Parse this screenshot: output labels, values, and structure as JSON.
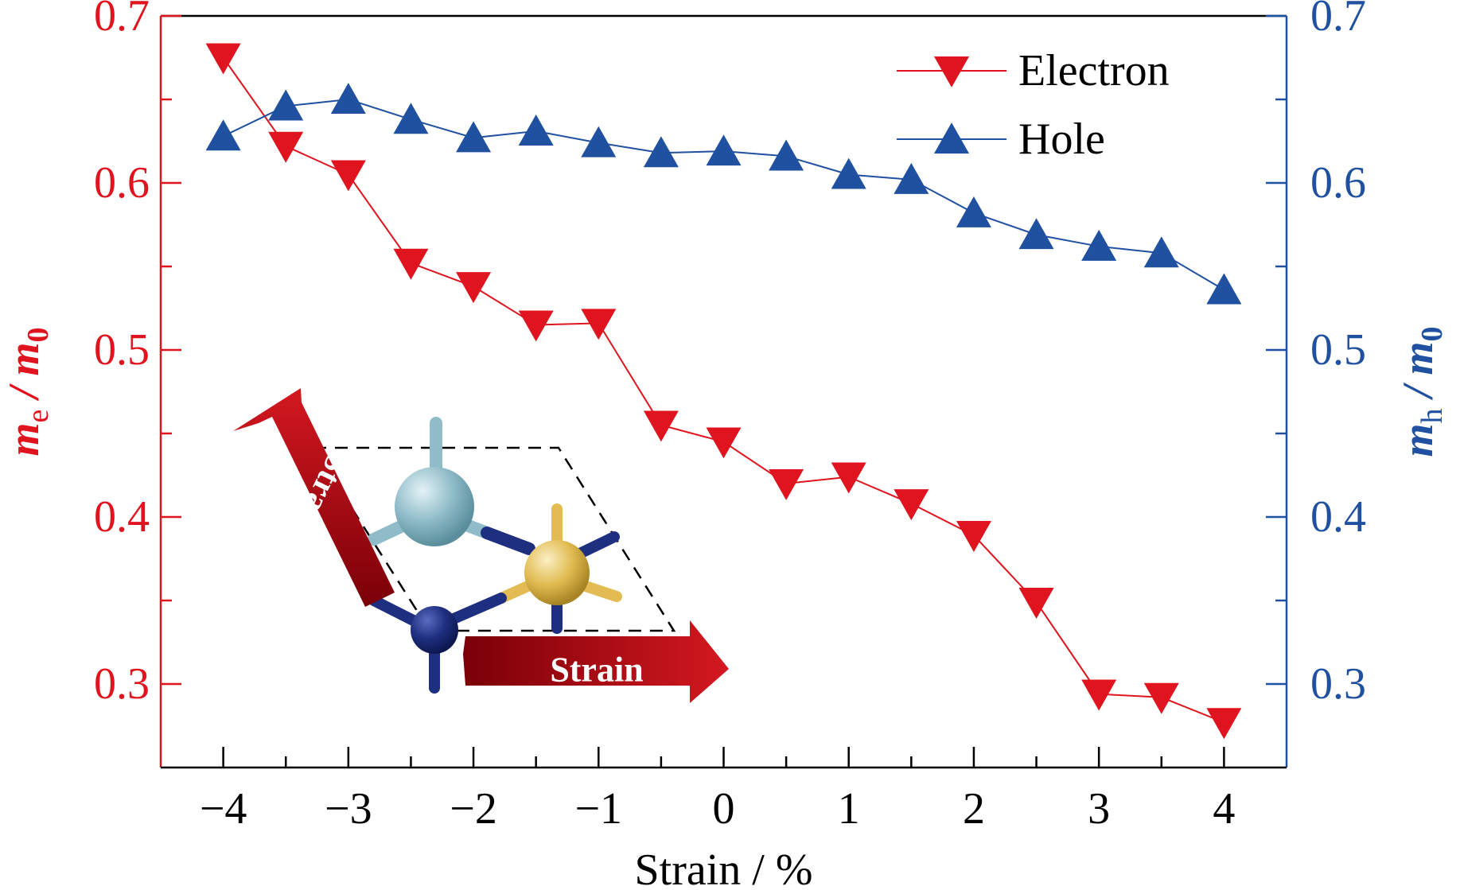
{
  "chart_data": {
    "type": "line",
    "xlabel": "Strain / %",
    "ylabel_left": {
      "main": "m",
      "sub": "e",
      "tail": " / m",
      "tailsub": "0"
    },
    "ylabel_right": {
      "main": "m",
      "sub": "h",
      "tail": " / m",
      "tailsub": "0"
    },
    "xlim": [
      -4.5,
      4.5
    ],
    "xticks": [
      -4,
      -3,
      -2,
      -1,
      0,
      1,
      2,
      3,
      4
    ],
    "xtick_labels": [
      "−4",
      "−3",
      "−2",
      "−1",
      "0",
      "1",
      "2",
      "3",
      "4"
    ],
    "ylim": [
      0.25,
      0.7
    ],
    "yticks": [
      0.3,
      0.4,
      0.5,
      0.6,
      0.7
    ],
    "ytick_labels": [
      "0.3",
      "0.4",
      "0.5",
      "0.6",
      "0.7"
    ],
    "legend_position": "top-right",
    "grid": false,
    "x": [
      -4,
      -3.5,
      -3,
      -2.5,
      -2,
      -1.5,
      -1,
      -0.5,
      0,
      0.5,
      1,
      1.5,
      2,
      2.5,
      3,
      3.5,
      4
    ],
    "series": [
      {
        "name": "Electron",
        "axis": "left",
        "marker": "triangle-down",
        "color": "#e0141e",
        "values": [
          0.675,
          0.622,
          0.605,
          0.552,
          0.538,
          0.515,
          0.516,
          0.455,
          0.445,
          0.42,
          0.424,
          0.408,
          0.389,
          0.349,
          0.294,
          0.292,
          0.277
        ]
      },
      {
        "name": "Hole",
        "axis": "right",
        "marker": "triangle-up",
        "color": "#2050a0",
        "values": [
          0.628,
          0.646,
          0.65,
          0.638,
          0.627,
          0.631,
          0.624,
          0.618,
          0.619,
          0.616,
          0.605,
          0.602,
          0.582,
          0.569,
          0.562,
          0.558,
          0.536
        ]
      }
    ],
    "inset": {
      "arrow_label_diagonal": "Strain",
      "arrow_label_horizontal": "Strain"
    }
  },
  "colors": {
    "left_axis": "#e0141e",
    "right_axis": "#2050a0",
    "atom_light": "#8fbcc8",
    "atom_gold": "#e2bc52",
    "atom_dark": "#1e2f80",
    "arrow_red": "#b81018"
  }
}
